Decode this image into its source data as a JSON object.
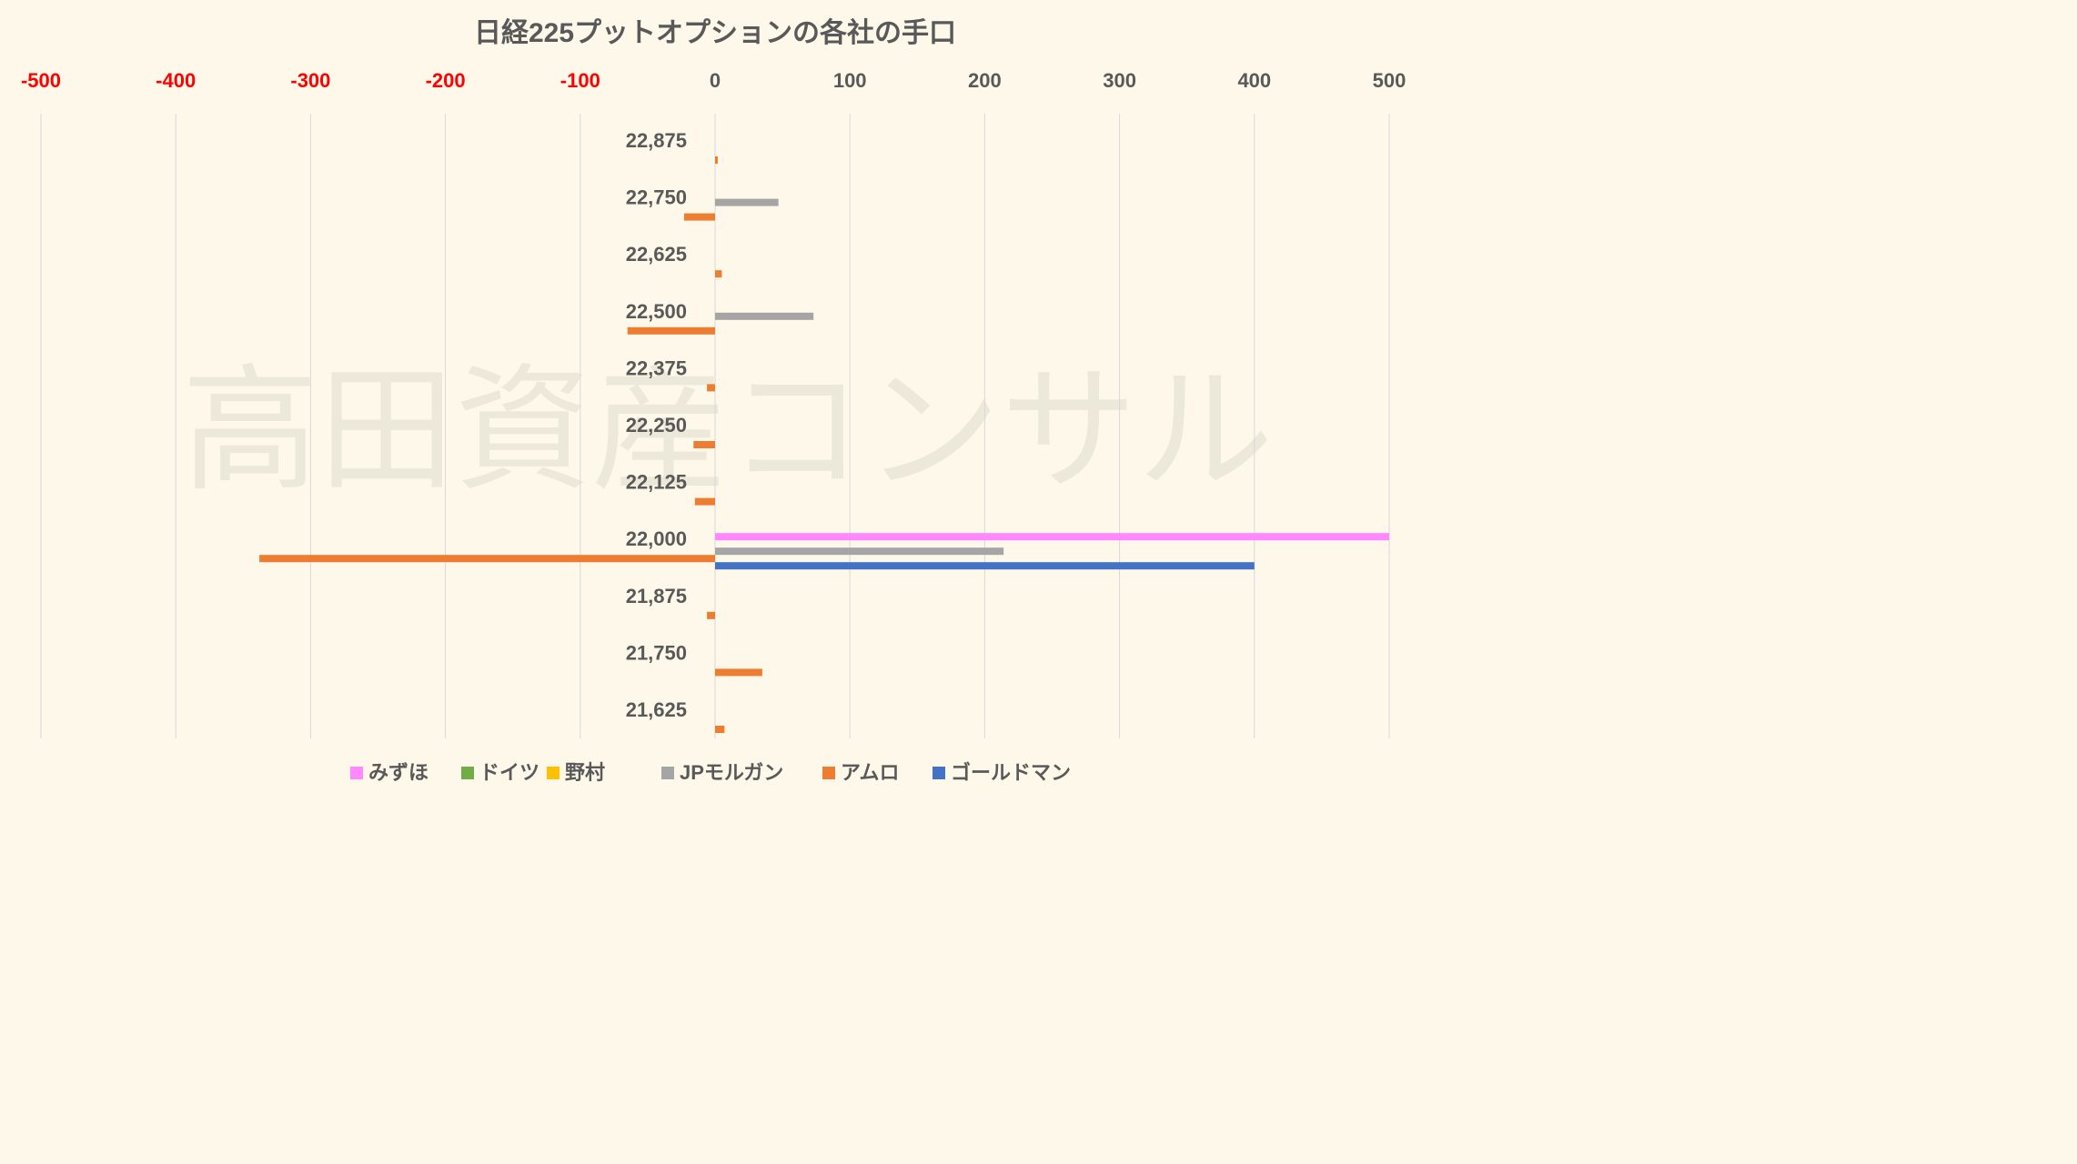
{
  "watermark": "高田資産コンサル",
  "chart_data": {
    "type": "bar",
    "orientation": "horizontal",
    "title": "日経225プットオプションの各社の手口",
    "xlim": [
      -500,
      500
    ],
    "x_ticks": [
      "-500",
      "-400",
      "-300",
      "-200",
      "-100",
      "0",
      "100",
      "200",
      "300",
      "400",
      "500"
    ],
    "x_tick_values": [
      -500,
      -400,
      -300,
      -200,
      -100,
      0,
      100,
      200,
      300,
      400,
      500
    ],
    "x_axis_position": "top",
    "grid": true,
    "legend_position": "bottom",
    "categories": [
      "22,875",
      "22,750",
      "22,625",
      "22,500",
      "22,375",
      "22,250",
      "22,125",
      "22,000",
      "21,875",
      "21,750",
      "21,625"
    ],
    "series": [
      {
        "name": "みずほ",
        "color": "#ff88ff",
        "values": [
          0,
          0,
          0,
          0,
          0,
          0,
          0,
          500,
          0,
          0,
          0
        ]
      },
      {
        "name": "ドイツ",
        "color": "#70ad47",
        "values": [
          0,
          0,
          0,
          0,
          0,
          0,
          0,
          0,
          0,
          0,
          0
        ]
      },
      {
        "name": "野村",
        "color": "#ffc000",
        "values": [
          0,
          0,
          0,
          0,
          0,
          0,
          0,
          0,
          0,
          0,
          0
        ]
      },
      {
        "name": "JPモルガン",
        "color": "#a5a5a5",
        "values": [
          0,
          47,
          0,
          73,
          0,
          0,
          0,
          214,
          0,
          0,
          0
        ]
      },
      {
        "name": "アムロ",
        "color": "#ed7d31",
        "values": [
          2,
          -23,
          5,
          -65,
          -6,
          -16,
          -15,
          -338,
          -6,
          35,
          7
        ]
      },
      {
        "name": "ゴールドマン",
        "color": "#4472c4",
        "values": [
          0,
          0,
          0,
          0,
          0,
          0,
          0,
          400,
          0,
          0,
          0
        ]
      }
    ]
  }
}
